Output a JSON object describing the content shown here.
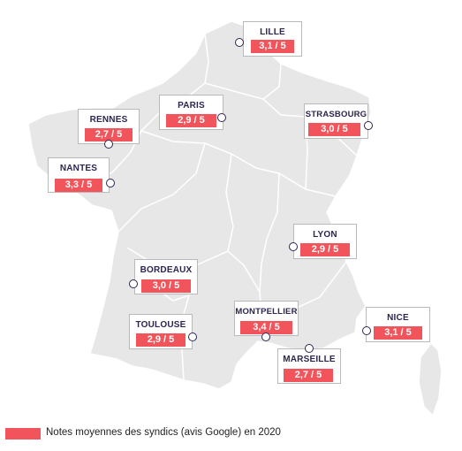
{
  "colors": {
    "land": "#e7e7e7",
    "border": "#ffffff",
    "rating_fill": "#f2545b",
    "text_dark": "#2e2450",
    "marker_stroke": "#2e2450"
  },
  "cities": [
    {
      "name": "LILLE",
      "rating": "3,1 / 5"
    },
    {
      "name": "PARIS",
      "rating": "2,9 / 5"
    },
    {
      "name": "RENNES",
      "rating": "2,7 / 5"
    },
    {
      "name": "STRASBOURG",
      "rating": "3,0 / 5"
    },
    {
      "name": "NANTES",
      "rating": "3,3 / 5"
    },
    {
      "name": "LYON",
      "rating": "2,9 / 5"
    },
    {
      "name": "BORDEAUX",
      "rating": "3,0 / 5"
    },
    {
      "name": "MONTPELLIER",
      "rating": "3,4 / 5"
    },
    {
      "name": "NICE",
      "rating": "3,1 / 5"
    },
    {
      "name": "TOULOUSE",
      "rating": "2,9 / 5"
    },
    {
      "name": "MARSEILLE",
      "rating": "2,7 / 5"
    }
  ],
  "legend": {
    "text": "Notes moyennes des syndics (avis Google) en 2020"
  }
}
